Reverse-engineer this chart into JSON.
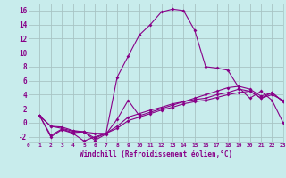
{
  "background_color": "#c8ecec",
  "grid_color": "#a8c4c4",
  "line_color": "#880088",
  "xlabel": "Windchill (Refroidissement éolien,°C)",
  "xlim": [
    0,
    23
  ],
  "ylim": [
    -2.8,
    17.0
  ],
  "xticks": [
    0,
    1,
    2,
    3,
    4,
    5,
    6,
    7,
    8,
    9,
    10,
    11,
    12,
    13,
    14,
    15,
    16,
    17,
    18,
    19,
    20,
    21,
    22,
    23
  ],
  "yticks": [
    -2,
    0,
    2,
    4,
    6,
    8,
    10,
    12,
    14,
    16
  ],
  "series": [
    {
      "x": [
        1,
        2,
        3,
        4,
        5,
        6,
        7,
        8,
        9,
        10,
        11,
        12,
        13,
        14,
        15,
        16,
        17,
        18,
        19,
        20,
        21,
        22,
        23
      ],
      "y": [
        1.0,
        -2.0,
        -1.0,
        -1.5,
        -2.6,
        -2.0,
        -1.5,
        6.5,
        9.5,
        12.5,
        14.0,
        15.8,
        16.2,
        16.0,
        13.2,
        8.0,
        7.8,
        7.5,
        5.0,
        3.5,
        4.5,
        3.2,
        0.0
      ]
    },
    {
      "x": [
        1,
        2,
        3,
        4,
        5,
        6,
        7,
        8,
        9,
        10,
        11,
        12,
        13,
        14,
        15,
        16,
        17,
        18,
        19,
        20,
        21,
        22,
        23
      ],
      "y": [
        1.0,
        -0.5,
        -0.8,
        -1.2,
        -1.3,
        -2.5,
        -1.6,
        0.5,
        3.2,
        1.0,
        1.5,
        2.0,
        2.5,
        3.0,
        3.5,
        4.0,
        4.5,
        5.0,
        5.2,
        4.8,
        3.8,
        4.3,
        3.0
      ]
    },
    {
      "x": [
        1,
        2,
        3,
        4,
        5,
        6,
        7,
        8,
        9,
        10,
        11,
        12,
        13,
        14,
        15,
        16,
        17,
        18,
        19,
        20,
        21,
        22,
        23
      ],
      "y": [
        1.0,
        -1.8,
        -0.9,
        -1.4,
        -1.3,
        -1.5,
        -1.5,
        -0.5,
        0.8,
        1.3,
        1.8,
        2.2,
        2.7,
        3.0,
        3.3,
        3.5,
        4.0,
        4.3,
        4.8,
        4.5,
        3.5,
        4.0,
        3.2
      ]
    },
    {
      "x": [
        1,
        2,
        3,
        4,
        5,
        6,
        7,
        8,
        9,
        10,
        11,
        12,
        13,
        14,
        15,
        16,
        17,
        18,
        19,
        20,
        21,
        22,
        23
      ],
      "y": [
        1.0,
        -0.5,
        -0.6,
        -1.1,
        -1.3,
        -2.2,
        -1.5,
        -0.8,
        0.3,
        0.8,
        1.3,
        1.8,
        2.2,
        2.7,
        3.0,
        3.2,
        3.6,
        4.0,
        4.3,
        4.5,
        3.5,
        4.3,
        3.0
      ]
    }
  ]
}
